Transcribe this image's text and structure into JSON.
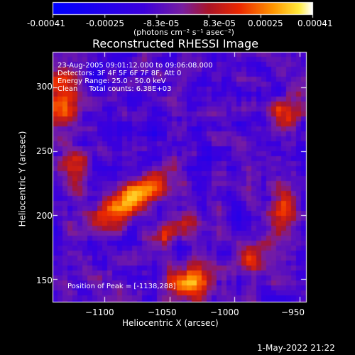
{
  "colorbar": {
    "tick_labels": [
      "-0.00041",
      "-0.00025",
      "-8.3e-05",
      "8.3e-05",
      "0.00025",
      "0.00041"
    ],
    "unit_label": "(photons cm⁻² s⁻¹ asec⁻²)",
    "range": [
      -0.00041,
      0.00041
    ],
    "colormap": "red-temperature with blue/purple negative side"
  },
  "chart_data": {
    "type": "heatmap",
    "title": "Reconstructed RHESSI Image",
    "xlabel": "Heliocentric X (arcsec)",
    "ylabel": "Heliocentric Y (arcsec)",
    "xlim": [
      -1140,
      -945
    ],
    "ylim": [
      132,
      328
    ],
    "x_ticks": [
      -1100,
      -1050,
      -1000,
      -950
    ],
    "y_ticks": [
      150,
      200,
      250,
      300
    ],
    "x_tick_labels": [
      "−1100",
      "−1050",
      "−1000",
      "−950"
    ],
    "y_tick_labels": [
      "150",
      "200",
      "250",
      "300"
    ],
    "annotations": [
      "23-Aug-2005 09:01:12.000 to 09:06:08.000",
      "Detectors: 3F 4F 5F 6F 7F 8F, Att 0",
      "Energy Range: 25.0 - 50.0 keV",
      "Clean     Total counts: 6.38E+03"
    ],
    "peak_label": "Position of Peak = [-1138,288]",
    "bright_features": [
      {
        "x": -1080,
        "y": 212
      },
      {
        "x": -1035,
        "y": 145
      },
      {
        "x": -1135,
        "y": 290
      }
    ]
  },
  "footer": {
    "timestamp": "1-May-2022 21:22"
  }
}
